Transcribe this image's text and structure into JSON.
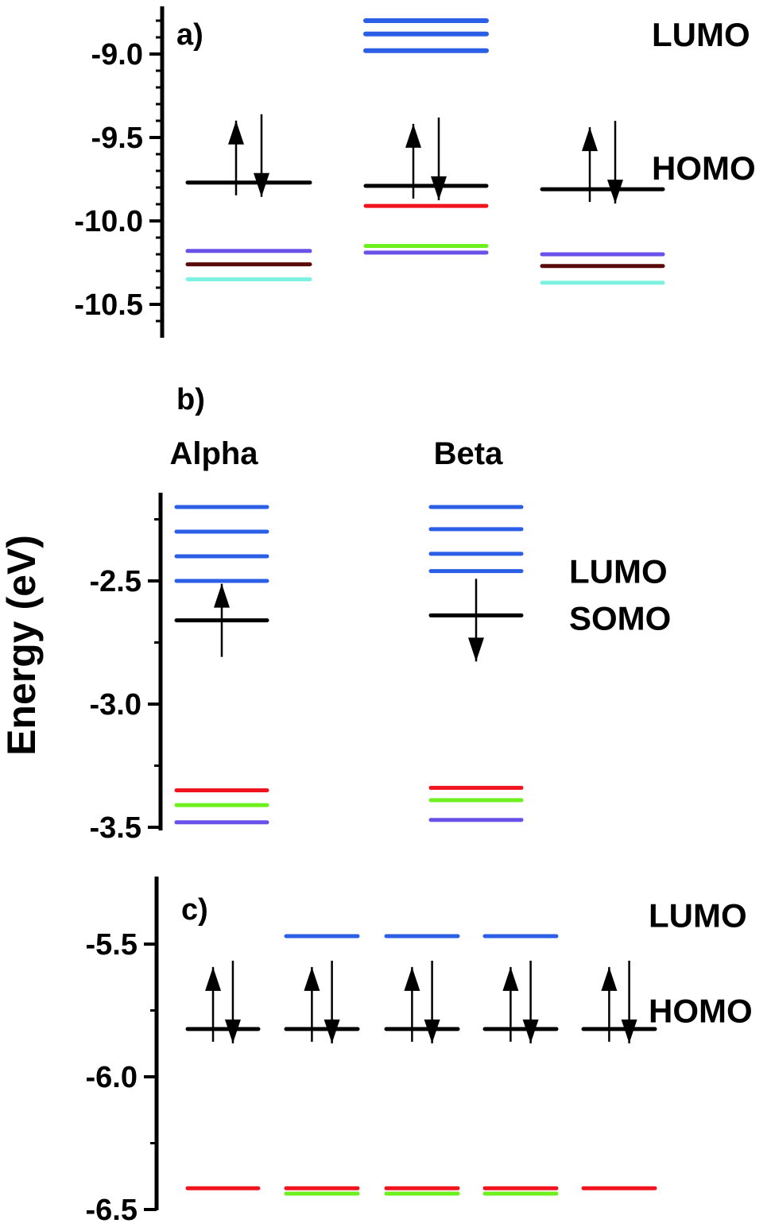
{
  "y_axis_title": "Energy (eV)",
  "colors": {
    "axis": "#000000",
    "blue": "#2b5fe6",
    "black": "#000000",
    "red": "#f0141e",
    "green": "#6ef01e",
    "purple": "#6a52e8",
    "darkred": "#5a0a0a",
    "cyan": "#7ef2e0"
  },
  "chart_data": [
    {
      "type": "other",
      "subtype": "energy-level-diagram",
      "panel": "a)",
      "ylim": [
        -10.7,
        -8.7
      ],
      "y_ticks": [
        -9.0,
        -9.5,
        -10.0,
        -10.5
      ],
      "y_tick_labels": [
        "-9.0",
        "-9.5",
        "-10.0",
        "-10.5"
      ],
      "side_labels": [
        {
          "text": "LUMO",
          "y": -8.88
        },
        {
          "text": "HOMO",
          "y": -9.68
        }
      ],
      "columns": [
        {
          "levels": [
            {
              "y": -9.77,
              "color": "black",
              "role": "HOMO",
              "electrons": "up-down"
            },
            {
              "y": -10.18,
              "color": "purple"
            },
            {
              "y": -10.26,
              "color": "darkred"
            },
            {
              "y": -10.35,
              "color": "cyan"
            }
          ]
        },
        {
          "levels": [
            {
              "y": -8.8,
              "color": "blue",
              "role": "LUMO"
            },
            {
              "y": -8.88,
              "color": "blue",
              "role": "LUMO"
            },
            {
              "y": -8.98,
              "color": "blue",
              "role": "LUMO"
            },
            {
              "y": -9.79,
              "color": "black",
              "role": "HOMO",
              "electrons": "up-down"
            },
            {
              "y": -9.91,
              "color": "red"
            },
            {
              "y": -10.15,
              "color": "green"
            },
            {
              "y": -10.19,
              "color": "purple"
            }
          ]
        },
        {
          "levels": [
            {
              "y": -9.81,
              "color": "black",
              "role": "HOMO",
              "electrons": "up-down"
            },
            {
              "y": -10.2,
              "color": "purple"
            },
            {
              "y": -10.27,
              "color": "darkred"
            },
            {
              "y": -10.37,
              "color": "cyan"
            }
          ]
        }
      ]
    },
    {
      "type": "other",
      "subtype": "energy-level-diagram",
      "panel": "b)",
      "ylim": [
        -3.5,
        -2.17
      ],
      "y_ticks": [
        -2.5,
        -3.0,
        -3.5
      ],
      "y_tick_labels": [
        "-2.5",
        "-3.0",
        "-3.5"
      ],
      "column_labels": [
        "Alpha",
        "Beta"
      ],
      "side_labels": [
        {
          "text": "LUMO",
          "y": -2.46
        },
        {
          "text": "SOMO",
          "y": -2.65
        }
      ],
      "columns": [
        {
          "label": "Alpha",
          "levels": [
            {
              "y": -2.2,
              "color": "blue",
              "role": "LUMO"
            },
            {
              "y": -2.3,
              "color": "blue",
              "role": "LUMO"
            },
            {
              "y": -2.4,
              "color": "blue",
              "role": "LUMO"
            },
            {
              "y": -2.5,
              "color": "blue",
              "role": "LUMO"
            },
            {
              "y": -2.66,
              "color": "black",
              "role": "SOMO",
              "electrons": "up"
            },
            {
              "y": -3.35,
              "color": "red"
            },
            {
              "y": -3.41,
              "color": "green"
            },
            {
              "y": -3.48,
              "color": "purple"
            }
          ]
        },
        {
          "label": "Beta",
          "levels": [
            {
              "y": -2.2,
              "color": "blue",
              "role": "LUMO"
            },
            {
              "y": -2.29,
              "color": "blue",
              "role": "LUMO"
            },
            {
              "y": -2.39,
              "color": "blue",
              "role": "LUMO"
            },
            {
              "y": -2.46,
              "color": "blue",
              "role": "LUMO"
            },
            {
              "y": -2.64,
              "color": "black",
              "role": "SOMO",
              "electrons": "down"
            },
            {
              "y": -3.34,
              "color": "red"
            },
            {
              "y": -3.39,
              "color": "green"
            },
            {
              "y": -3.47,
              "color": "purple"
            }
          ]
        }
      ]
    },
    {
      "type": "other",
      "subtype": "energy-level-diagram",
      "panel": "c)",
      "ylim": [
        -6.5,
        -5.25
      ],
      "y_ticks": [
        -5.5,
        -6.0,
        -6.5
      ],
      "y_tick_labels": [
        "-5.5",
        "-6.0",
        "-6.5"
      ],
      "side_labels": [
        {
          "text": "LUMO",
          "y": -5.39
        },
        {
          "text": "HOMO",
          "y": -5.75
        }
      ],
      "columns": [
        {
          "levels": [
            {
              "y": -5.82,
              "color": "black",
              "role": "HOMO",
              "electrons": "up-down"
            },
            {
              "y": -6.42,
              "color": "red"
            }
          ]
        },
        {
          "levels": [
            {
              "y": -5.47,
              "color": "blue",
              "role": "LUMO"
            },
            {
              "y": -5.82,
              "color": "black",
              "role": "HOMO",
              "electrons": "up-down"
            },
            {
              "y": -6.42,
              "color": "red"
            },
            {
              "y": -6.44,
              "color": "green"
            }
          ]
        },
        {
          "levels": [
            {
              "y": -5.47,
              "color": "blue",
              "role": "LUMO"
            },
            {
              "y": -5.82,
              "color": "black",
              "role": "HOMO",
              "electrons": "up-down"
            },
            {
              "y": -6.42,
              "color": "red"
            },
            {
              "y": -6.44,
              "color": "green"
            }
          ]
        },
        {
          "levels": [
            {
              "y": -5.47,
              "color": "blue",
              "role": "LUMO"
            },
            {
              "y": -5.82,
              "color": "black",
              "role": "HOMO",
              "electrons": "up-down"
            },
            {
              "y": -6.42,
              "color": "red"
            },
            {
              "y": -6.44,
              "color": "green"
            }
          ]
        },
        {
          "levels": [
            {
              "y": -5.82,
              "color": "black",
              "role": "HOMO",
              "electrons": "up-down"
            },
            {
              "y": -6.42,
              "color": "red"
            }
          ]
        }
      ]
    }
  ]
}
